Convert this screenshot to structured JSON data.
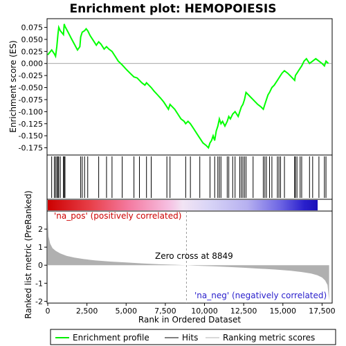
{
  "chart_data": {
    "type": "line",
    "title": "Enrichment plot: HEMOPOIESIS",
    "es_panel": {
      "ylabel": "Enrichment score (ES)",
      "ylim": [
        -0.19,
        0.093
      ],
      "yticks": [
        -0.175,
        -0.15,
        -0.125,
        -0.1,
        -0.075,
        -0.05,
        -0.025,
        0.0,
        0.025,
        0.05,
        0.075
      ],
      "ytick_labels": [
        "-0.175",
        "-0.150",
        "-0.125",
        "-0.100",
        "-0.075",
        "-0.050",
        "-0.025",
        "0.000",
        "0.025",
        "0.050",
        "0.075"
      ],
      "line_color": "#00ff00",
      "series": {
        "name": "Enrichment profile",
        "x": [
          0,
          250,
          420,
          500,
          580,
          650,
          700,
          800,
          1000,
          1050,
          1100,
          1300,
          1500,
          1700,
          1900,
          2050,
          2100,
          2200,
          2350,
          2450,
          2550,
          2700,
          2900,
          3100,
          3250,
          3400,
          3600,
          3750,
          3900,
          4100,
          4300,
          4500,
          4750,
          5000,
          5250,
          5500,
          5700,
          5850,
          6000,
          6200,
          6300,
          6450,
          6600,
          6800,
          7000,
          7200,
          7400,
          7600,
          7700,
          7800,
          7950,
          8100,
          8300,
          8500,
          8700,
          8800,
          8950,
          9100,
          9300,
          9500,
          9700,
          9900,
          10100,
          10250,
          10350,
          10450,
          10550,
          10650,
          10750,
          10850,
          10950,
          11050,
          11150,
          11300,
          11450,
          11550,
          11650,
          11800,
          11950,
          12050,
          12150,
          12250,
          12350,
          12450,
          12550,
          12650,
          12800,
          12950,
          13100,
          13250,
          13400,
          13600,
          13750,
          13850,
          13950,
          14050,
          14150,
          14300,
          14450,
          14550,
          14650,
          14750,
          14850,
          14950,
          15100,
          15300,
          15450,
          15600,
          15750,
          15800,
          15900,
          16000,
          16100,
          16200,
          16350,
          16500,
          16700,
          16900,
          17100,
          17300,
          17500,
          17650,
          17750,
          17900
        ],
        "y": [
          0.018,
          0.028,
          0.02,
          0.015,
          0.035,
          0.06,
          0.075,
          0.068,
          0.06,
          0.082,
          0.077,
          0.065,
          0.052,
          0.04,
          0.028,
          0.035,
          0.055,
          0.065,
          0.068,
          0.072,
          0.068,
          0.058,
          0.048,
          0.038,
          0.045,
          0.04,
          0.03,
          0.035,
          0.03,
          0.025,
          0.015,
          0.005,
          -0.003,
          -0.012,
          -0.02,
          -0.028,
          -0.03,
          -0.035,
          -0.04,
          -0.045,
          -0.04,
          -0.045,
          -0.05,
          -0.058,
          -0.065,
          -0.072,
          -0.08,
          -0.09,
          -0.095,
          -0.085,
          -0.09,
          -0.095,
          -0.105,
          -0.115,
          -0.12,
          -0.125,
          -0.12,
          -0.125,
          -0.135,
          -0.145,
          -0.155,
          -0.165,
          -0.17,
          -0.175,
          -0.165,
          -0.16,
          -0.15,
          -0.16,
          -0.14,
          -0.13,
          -0.115,
          -0.125,
          -0.12,
          -0.13,
          -0.12,
          -0.11,
          -0.115,
          -0.105,
          -0.1,
          -0.105,
          -0.11,
          -0.1,
          -0.09,
          -0.085,
          -0.075,
          -0.06,
          -0.065,
          -0.07,
          -0.075,
          -0.08,
          -0.085,
          -0.09,
          -0.095,
          -0.085,
          -0.075,
          -0.065,
          -0.06,
          -0.05,
          -0.045,
          -0.04,
          -0.035,
          -0.03,
          -0.025,
          -0.02,
          -0.015,
          -0.02,
          -0.025,
          -0.03,
          -0.035,
          -0.025,
          -0.02,
          -0.015,
          -0.01,
          -0.005,
          0.005,
          0.01,
          0.0,
          0.005,
          0.01,
          0.005,
          0.0,
          -0.005,
          0.005,
          0.0
        ]
      }
    },
    "hits": [
      250,
      420,
      500,
      580,
      650,
      700,
      800,
      1000,
      1050,
      1100,
      2100,
      2200,
      2350,
      2550,
      3250,
      3750,
      4100,
      4750,
      5500,
      5850,
      6300,
      6600,
      7600,
      7800,
      8800,
      9100,
      9700,
      10350,
      10650,
      10850,
      10950,
      11050,
      11450,
      11550,
      11800,
      11950,
      12250,
      12350,
      12450,
      12550,
      12650,
      13100,
      13750,
      13850,
      13950,
      14150,
      14300,
      14650,
      14750,
      14850,
      15100,
      15750,
      15800,
      15900,
      16100,
      16200,
      16700,
      16900,
      17300,
      17650,
      17750
    ],
    "rank_panel": {
      "ylabel": "Ranked list metric (PreRanked)",
      "xlabel": "Rank in Ordered Dataset",
      "ylim": [
        -2.1,
        3.0
      ],
      "yticks": [
        -2,
        -1,
        0,
        1,
        2
      ],
      "ytick_labels": [
        "-2",
        "-1",
        "0",
        "1",
        "2"
      ],
      "xticks": [
        0,
        2500,
        5000,
        7500,
        10000,
        12500,
        15000,
        17500
      ],
      "xtick_labels": [
        "0",
        "2,500",
        "5,000",
        "7,500",
        "10,000",
        "12,500",
        "15,000",
        "17,500"
      ],
      "xlim": [
        0,
        18100
      ],
      "fill_color": "#b0b0b0",
      "metric_x": [
        0,
        50,
        150,
        300,
        500,
        800,
        1200,
        1700,
        2300,
        3000,
        4000,
        5000,
        6000,
        7000,
        8000,
        8849,
        9500,
        10500,
        11500,
        12500,
        13500,
        14500,
        15500,
        16200,
        16800,
        17200,
        17500,
        17700,
        17850,
        17950
      ],
      "metric_y": [
        2.6,
        1.6,
        1.2,
        0.95,
        0.8,
        0.65,
        0.52,
        0.42,
        0.34,
        0.27,
        0.2,
        0.15,
        0.1,
        0.06,
        0.03,
        0.0,
        -0.03,
        -0.06,
        -0.1,
        -0.14,
        -0.19,
        -0.24,
        -0.31,
        -0.38,
        -0.46,
        -0.56,
        -0.68,
        -0.85,
        -1.1,
        -1.95
      ],
      "zero_cross_label": "Zero cross at 8849",
      "zero_cross_x": 8849,
      "pos_label": "'na_pos' (positively correlated)",
      "neg_label": "'na_neg' (negatively correlated)"
    },
    "legend": {
      "items": [
        {
          "label": "Enrichment profile",
          "color": "#00ff00"
        },
        {
          "label": "Hits",
          "color": "#000000"
        },
        {
          "label": "Ranking metric scores",
          "color": "#b0b0b0"
        }
      ]
    }
  }
}
